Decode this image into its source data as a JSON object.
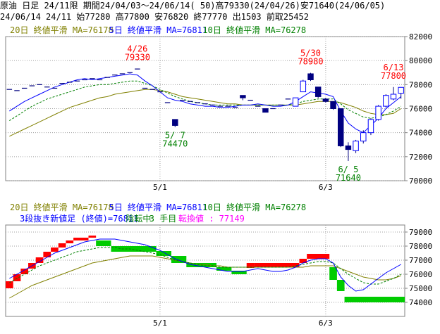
{
  "header": {
    "line1": "原油 日足 24/11限 期間24/04/03～24/06/14( 50)高79330(24/04/26)安71640(24/06/05)",
    "line2": "24/06/14 24/11 始77280 高77800 安76820 終77770 出1503 前取25452"
  },
  "colors": {
    "ma20": "#808000",
    "ma5": "#0000ff",
    "ma10": "#008000",
    "up_candle": "#0000ff",
    "down_candle": "#000080",
    "annotation_high": "#ff0000",
    "annotation_low": "#008000",
    "sanbon_up": "#ff0000",
    "sanbon_down": "#00cc00",
    "info_magenta": "#ff00ff"
  },
  "chart_data": [
    {
      "type": "candlestick",
      "legend": [
        {
          "name": "20日 終値平滑 MA=76178",
          "color": "#808000"
        },
        {
          "name": "5日 終値平滑 MA=76811",
          "color": "#0000ff"
        },
        {
          "name": "10日 終値平滑 MA=76278",
          "color": "#008000"
        }
      ],
      "ylim": [
        70000,
        82000
      ],
      "yticks": [
        70000,
        72000,
        74000,
        76000,
        78000,
        80000,
        82000
      ],
      "xticks": [
        {
          "label": "5/1",
          "index": 20
        },
        {
          "label": "6/3",
          "index": 42
        }
      ],
      "annotations": [
        {
          "date": "4/26",
          "value": "79330",
          "index": 17,
          "kind": "high"
        },
        {
          "date": "5/ 7",
          "value": "74470",
          "index": 22,
          "kind": "low"
        },
        {
          "date": "5/30",
          "value": "78980",
          "index": 40,
          "kind": "high"
        },
        {
          "date": "6/ 5",
          "value": "71640",
          "index": 45,
          "kind": "low"
        },
        {
          "date": "6/13",
          "value": "77800",
          "index": 51,
          "kind": "high"
        }
      ],
      "candles": [
        {
          "o": 77600,
          "h": 77600,
          "l": 77600,
          "c": 77600
        },
        {
          "o": 77500,
          "h": 77500,
          "l": 77500,
          "c": 77500
        },
        {
          "o": 77700,
          "h": 77700,
          "l": 77700,
          "c": 77700
        },
        {
          "o": 77900,
          "h": 77900,
          "l": 77900,
          "c": 77900
        },
        {
          "o": 78000,
          "h": 78000,
          "l": 78000,
          "c": 78000
        },
        {
          "o": 77800,
          "h": 77800,
          "l": 77800,
          "c": 77800
        },
        {
          "o": 77700,
          "h": 77700,
          "l": 77700,
          "c": 77700
        },
        {
          "o": 78100,
          "h": 78100,
          "l": 78100,
          "c": 78100
        },
        {
          "o": 78200,
          "h": 78200,
          "l": 78200,
          "c": 78200
        },
        {
          "o": 78300,
          "h": 78300,
          "l": 78300,
          "c": 78300
        },
        {
          "o": 78400,
          "h": 78400,
          "l": 78400,
          "c": 78400
        },
        {
          "o": 78500,
          "h": 78500,
          "l": 78500,
          "c": 78500
        },
        {
          "o": 78400,
          "h": 78400,
          "l": 78400,
          "c": 78400
        },
        {
          "o": 78600,
          "h": 78600,
          "l": 78600,
          "c": 78600
        },
        {
          "o": 78800,
          "h": 78800,
          "l": 78800,
          "c": 78800
        },
        {
          "o": 78900,
          "h": 78900,
          "l": 78900,
          "c": 78900
        },
        {
          "o": 79000,
          "h": 79000,
          "l": 79000,
          "c": 79000
        },
        {
          "o": 79300,
          "h": 79330,
          "l": 79300,
          "c": 79300
        },
        {
          "o": 77700,
          "h": 77700,
          "l": 77700,
          "c": 77700
        },
        {
          "o": 77600,
          "h": 77600,
          "l": 77600,
          "c": 77600
        },
        {
          "o": 77400,
          "h": 77400,
          "l": 77400,
          "c": 77400
        },
        {
          "o": 76500,
          "h": 76500,
          "l": 76500,
          "c": 76500
        },
        {
          "o": 75100,
          "h": 75100,
          "l": 74470,
          "c": 74600
        },
        {
          "o": 76700,
          "h": 76700,
          "l": 76700,
          "c": 76700
        },
        {
          "o": 76600,
          "h": 76600,
          "l": 76600,
          "c": 76600
        },
        {
          "o": 76500,
          "h": 76500,
          "l": 76500,
          "c": 76500
        },
        {
          "o": 76400,
          "h": 76400,
          "l": 76400,
          "c": 76400
        },
        {
          "o": 76300,
          "h": 76300,
          "l": 76300,
          "c": 76300
        },
        {
          "o": 76200,
          "h": 76200,
          "l": 76200,
          "c": 76200
        },
        {
          "o": 76200,
          "h": 76200,
          "l": 76200,
          "c": 76200
        },
        {
          "o": 76100,
          "h": 76100,
          "l": 76100,
          "c": 76100
        },
        {
          "o": 77100,
          "h": 77100,
          "l": 76700,
          "c": 76900
        },
        {
          "o": 76700,
          "h": 76700,
          "l": 76700,
          "c": 76700
        },
        {
          "o": 76200,
          "h": 76200,
          "l": 76200,
          "c": 76200
        },
        {
          "o": 76000,
          "h": 76000,
          "l": 75700,
          "c": 75700
        },
        {
          "o": 76000,
          "h": 76000,
          "l": 76000,
          "c": 76000
        },
        {
          "o": 76300,
          "h": 76300,
          "l": 76300,
          "c": 76300
        },
        {
          "o": 76800,
          "h": 76800,
          "l": 76800,
          "c": 76800
        },
        {
          "o": 76200,
          "h": 76900,
          "l": 76200,
          "c": 76900
        },
        {
          "o": 77400,
          "h": 78400,
          "l": 77400,
          "c": 78300
        },
        {
          "o": 78900,
          "h": 78980,
          "l": 78300,
          "c": 78400
        },
        {
          "o": 77800,
          "h": 77800,
          "l": 76900,
          "c": 77000
        },
        {
          "o": 76800,
          "h": 76900,
          "l": 76500,
          "c": 76600
        },
        {
          "o": 76600,
          "h": 76600,
          "l": 75900,
          "c": 76000
        },
        {
          "o": 76000,
          "h": 76000,
          "l": 72800,
          "c": 72900
        },
        {
          "o": 72900,
          "h": 73200,
          "l": 71640,
          "c": 72600
        },
        {
          "o": 72500,
          "h": 73400,
          "l": 72300,
          "c": 73300
        },
        {
          "o": 73300,
          "h": 74200,
          "l": 73100,
          "c": 74000
        },
        {
          "o": 74000,
          "h": 75200,
          "l": 73800,
          "c": 75100
        },
        {
          "o": 75100,
          "h": 76300,
          "l": 75000,
          "c": 76200
        },
        {
          "o": 76200,
          "h": 77200,
          "l": 76100,
          "c": 77100
        },
        {
          "o": 76800,
          "h": 77800,
          "l": 76700,
          "c": 77200
        },
        {
          "o": 77280,
          "h": 77800,
          "l": 76820,
          "c": 77770
        }
      ],
      "ma5": [
        75800,
        76200,
        76600,
        76900,
        77200,
        77500,
        77800,
        78000,
        78200,
        78400,
        78500,
        78400,
        78500,
        78600,
        78700,
        78800,
        78900,
        78800,
        78300,
        77900,
        77400,
        76900,
        76700,
        76600,
        76400,
        76300,
        76200,
        76200,
        76100,
        76100,
        76200,
        76300,
        76300,
        76400,
        76300,
        76200,
        76200,
        76300,
        76600,
        77000,
        77400,
        77300,
        77200,
        77000,
        75800,
        74800,
        74300,
        74000,
        74600,
        75200,
        76000,
        76500,
        77000
      ],
      "ma10": [
        75000,
        75400,
        75800,
        76200,
        76500,
        76800,
        77000,
        77200,
        77400,
        77600,
        77800,
        77900,
        78000,
        78000,
        78100,
        78200,
        78300,
        78300,
        78100,
        77900,
        77600,
        77300,
        77000,
        76800,
        76600,
        76500,
        76400,
        76300,
        76300,
        76300,
        76300,
        76300,
        76300,
        76300,
        76300,
        76300,
        76300,
        76300,
        76400,
        76600,
        76700,
        76800,
        76800,
        76800,
        76400,
        75900,
        75600,
        75300,
        75200,
        75300,
        75500,
        75800,
        76200
      ],
      "ma20": [
        73700,
        74000,
        74300,
        74600,
        74900,
        75200,
        75500,
        75800,
        76100,
        76300,
        76500,
        76700,
        76900,
        77000,
        77200,
        77300,
        77400,
        77500,
        77600,
        77600,
        77500,
        77400,
        77200,
        77000,
        76900,
        76800,
        76700,
        76600,
        76500,
        76400,
        76400,
        76300,
        76300,
        76300,
        76300,
        76300,
        76300,
        76300,
        76300,
        76400,
        76500,
        76600,
        76600,
        76600,
        76500,
        76300,
        76100,
        75800,
        75600,
        75500,
        75500,
        75600,
        76000
      ]
    },
    {
      "type": "sanbon",
      "legend": [
        {
          "name": "20日 終値平滑 MA=76178",
          "color": "#808000"
        },
        {
          "name": "5日 終値平滑 MA=76811",
          "color": "#0000ff"
        },
        {
          "name": "10日 終値平滑 MA=76278",
          "color": "#008000"
        }
      ],
      "info": {
        "part1": "3段抜き新値足 (終値)=76811",
        "part2": "陰転中",
        "part3": "3 手目",
        "part4": "転換値 : 77149"
      },
      "ylim": [
        73000,
        79500
      ],
      "yticks": [
        74000,
        75000,
        76000,
        77000,
        78000,
        79000
      ],
      "xticks": [
        {
          "label": "5/1",
          "index": 20
        },
        {
          "label": "6/3",
          "index": 42
        }
      ],
      "bricks": [
        {
          "s": 0,
          "e": 1,
          "lo": 75000,
          "hi": 75500,
          "dir": "up"
        },
        {
          "s": 1,
          "e": 2,
          "lo": 75500,
          "hi": 76000,
          "dir": "up"
        },
        {
          "s": 2,
          "e": 3,
          "lo": 76000,
          "hi": 76400,
          "dir": "up"
        },
        {
          "s": 3,
          "e": 4,
          "lo": 76400,
          "hi": 76800,
          "dir": "up"
        },
        {
          "s": 4,
          "e": 5,
          "lo": 76800,
          "hi": 77200,
          "dir": "up"
        },
        {
          "s": 5,
          "e": 6,
          "lo": 77200,
          "hi": 77600,
          "dir": "up"
        },
        {
          "s": 6,
          "e": 7,
          "lo": 77600,
          "hi": 77900,
          "dir": "up"
        },
        {
          "s": 7,
          "e": 8,
          "lo": 77900,
          "hi": 78200,
          "dir": "up"
        },
        {
          "s": 8,
          "e": 9,
          "lo": 78200,
          "hi": 78400,
          "dir": "up"
        },
        {
          "s": 9,
          "e": 11,
          "lo": 78400,
          "hi": 78600,
          "dir": "up"
        },
        {
          "s": 11,
          "e": 12,
          "lo": 78600,
          "hi": 78750,
          "dir": "up"
        },
        {
          "s": 12,
          "e": 14,
          "lo": 78000,
          "hi": 78400,
          "dir": "down"
        },
        {
          "s": 14,
          "e": 20,
          "lo": 77600,
          "hi": 78000,
          "dir": "down"
        },
        {
          "s": 20,
          "e": 22,
          "lo": 77300,
          "hi": 77650,
          "dir": "down"
        },
        {
          "s": 22,
          "e": 24,
          "lo": 76800,
          "hi": 77300,
          "dir": "down"
        },
        {
          "s": 24,
          "e": 28,
          "lo": 76500,
          "hi": 76800,
          "dir": "down"
        },
        {
          "s": 28,
          "e": 30,
          "lo": 76250,
          "hi": 76500,
          "dir": "down"
        },
        {
          "s": 30,
          "e": 32,
          "lo": 76000,
          "hi": 76250,
          "dir": "down"
        },
        {
          "s": 32,
          "e": 33,
          "lo": 76450,
          "hi": 76800,
          "dir": "up"
        },
        {
          "s": 33,
          "e": 39,
          "lo": 76500,
          "hi": 76800,
          "dir": "up"
        },
        {
          "s": 39,
          "e": 40,
          "lo": 76800,
          "hi": 77100,
          "dir": "up"
        },
        {
          "s": 40,
          "e": 43,
          "lo": 77100,
          "hi": 77450,
          "dir": "up"
        },
        {
          "s": 43,
          "e": 44,
          "lo": 75600,
          "hi": 76500,
          "dir": "down"
        },
        {
          "s": 44,
          "e": 45,
          "lo": 74800,
          "hi": 75600,
          "dir": "down"
        },
        {
          "s": 45,
          "e": 53,
          "lo": 74000,
          "hi": 74400,
          "dir": "down"
        }
      ],
      "ma5": [
        75700,
        76000,
        76300,
        76600,
        76900,
        77200,
        77500,
        77700,
        77900,
        78100,
        78300,
        78400,
        78500,
        78500,
        78500,
        78400,
        78300,
        78200,
        78100,
        77900,
        77700,
        77400,
        77100,
        76900,
        76700,
        76600,
        76500,
        76400,
        76300,
        76200,
        76200,
        76200,
        76300,
        76400,
        76300,
        76200,
        76200,
        76300,
        76500,
        76800,
        77000,
        77100,
        77100,
        76800,
        75800,
        75200,
        74800,
        74900,
        75300,
        75700,
        76100,
        76400,
        76700
      ],
      "ma10": [
        75400,
        75700,
        76000,
        76300,
        76600,
        76800,
        77000,
        77200,
        77400,
        77600,
        77700,
        77800,
        77900,
        77900,
        77900,
        77800,
        77800,
        77700,
        77600,
        77500,
        77400,
        77200,
        77000,
        76900,
        76800,
        76700,
        76600,
        76600,
        76500,
        76500,
        76500,
        76500,
        76500,
        76500,
        76500,
        76500,
        76500,
        76500,
        76600,
        76700,
        76800,
        76900,
        76900,
        76800,
        76400,
        76000,
        75700,
        75400,
        75300,
        75300,
        75500,
        75700,
        76000
      ],
      "ma20": [
        74300,
        74600,
        74900,
        75200,
        75400,
        75600,
        75800,
        76000,
        76200,
        76400,
        76600,
        76800,
        76900,
        77000,
        77100,
        77200,
        77300,
        77300,
        77300,
        77300,
        77200,
        77100,
        77000,
        76900,
        76800,
        76700,
        76700,
        76600,
        76600,
        76500,
        76500,
        76500,
        76500,
        76500,
        76500,
        76500,
        76500,
        76500,
        76500,
        76500,
        76600,
        76600,
        76600,
        76600,
        76400,
        76200,
        76000,
        75800,
        75700,
        75600,
        75600,
        75700,
        75900
      ]
    }
  ]
}
